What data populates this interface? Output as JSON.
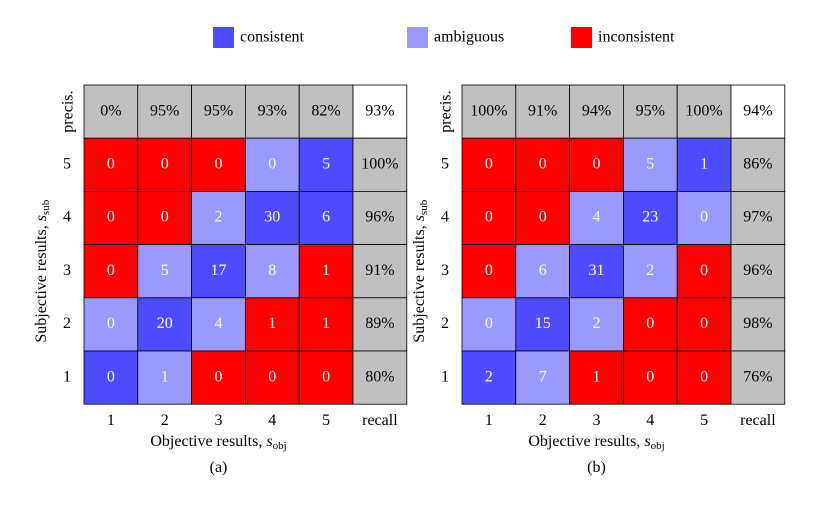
{
  "chart_data": {
    "type": "heatmap",
    "legend": [
      {
        "name": "consistent",
        "color": "#4d4dff"
      },
      {
        "name": "ambiguous",
        "color": "#9999ff"
      },
      {
        "name": "inconsistent",
        "color": "#ff0000"
      }
    ],
    "summary_color": "#c0c0c0",
    "panels": [
      {
        "caption": "(a)",
        "x_label": {
          "text": "Objective results, ",
          "symbol": "s",
          "subscript": "obj"
        },
        "y_label": {
          "text": "Subjective results, ",
          "symbol": "s",
          "subscript": "sub"
        },
        "x_categories": [
          1,
          2,
          3,
          4,
          5
        ],
        "y_categories": [
          5,
          4,
          3,
          2,
          1
        ],
        "recall_label": "recall",
        "precision_label": "precis.",
        "values": [
          [
            0,
            0,
            0,
            0,
            5
          ],
          [
            0,
            0,
            2,
            30,
            6
          ],
          [
            0,
            5,
            17,
            8,
            1
          ],
          [
            0,
            20,
            4,
            1,
            1
          ],
          [
            0,
            1,
            0,
            0,
            0
          ]
        ],
        "classes": [
          [
            2,
            2,
            2,
            1,
            0
          ],
          [
            2,
            2,
            1,
            0,
            0
          ],
          [
            2,
            1,
            0,
            1,
            2
          ],
          [
            1,
            0,
            1,
            2,
            2
          ],
          [
            0,
            1,
            2,
            2,
            2
          ]
        ],
        "recall": {
          "values": [
            100,
            96,
            91,
            89,
            80
          ],
          "value_labels": [
            "100%",
            "96%",
            "91%",
            "89%",
            "80%"
          ]
        },
        "precision": {
          "values": [
            0,
            95,
            95,
            93,
            82
          ],
          "value_labels": [
            "0%",
            "95%",
            "95%",
            "93%",
            "82%"
          ]
        },
        "overall": {
          "value": 93,
          "value_label": "93%"
        }
      },
      {
        "caption": "(b)",
        "x_label": {
          "text": "Objective results, ",
          "symbol": "s",
          "subscript": "obj"
        },
        "y_label": {
          "text": "Subjective results, ",
          "symbol": "s",
          "subscript": "sub"
        },
        "x_categories": [
          1,
          2,
          3,
          4,
          5
        ],
        "y_categories": [
          5,
          4,
          3,
          2,
          1
        ],
        "recall_label": "recall",
        "precision_label": "precis.",
        "values": [
          [
            0,
            0,
            0,
            5,
            1
          ],
          [
            0,
            0,
            4,
            23,
            0
          ],
          [
            0,
            6,
            31,
            2,
            0
          ],
          [
            0,
            15,
            2,
            0,
            0
          ],
          [
            2,
            7,
            1,
            0,
            0
          ]
        ],
        "classes": [
          [
            2,
            2,
            2,
            1,
            0
          ],
          [
            2,
            2,
            1,
            0,
            1
          ],
          [
            2,
            1,
            0,
            1,
            2
          ],
          [
            1,
            0,
            1,
            2,
            2
          ],
          [
            0,
            1,
            2,
            2,
            2
          ]
        ],
        "recall": {
          "values": [
            86,
            97,
            96,
            98,
            76
          ],
          "value_labels": [
            "86%",
            "97%",
            "96%",
            "98%",
            "76%"
          ]
        },
        "precision": {
          "values": [
            100,
            91,
            94,
            95,
            100
          ],
          "value_labels": [
            "100%",
            "91%",
            "94%",
            "95%",
            "100%"
          ]
        },
        "overall": {
          "value": 94,
          "value_label": "94%"
        }
      }
    ]
  }
}
